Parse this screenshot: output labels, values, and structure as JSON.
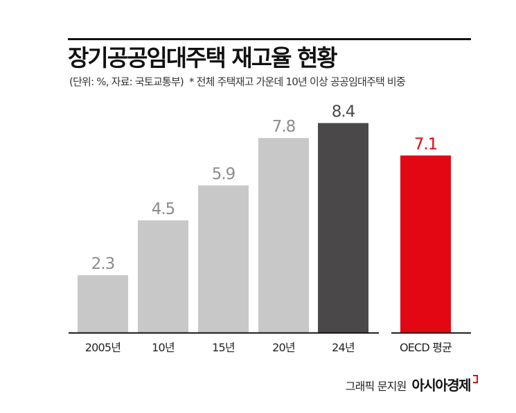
{
  "header": {
    "title": "장기공공임대주택 재고율 현황",
    "subtitle": "(단위: %, 자료: 국토교통부)",
    "note": "* 전체 주택재고 가운데 10년 이상 공공임대주택 비중"
  },
  "credit": {
    "artist": "그래픽 문지원",
    "brand": "아시아경제"
  },
  "colors": {
    "bar_default": "#c8c8c8",
    "bar_latest": "#4a4849",
    "bar_oecd": "#e30613",
    "label_default": "#8c8c8c",
    "label_latest": "#4a4849",
    "label_oecd": "#e30613",
    "axis": "#111111"
  },
  "chart_data": {
    "type": "bar",
    "title": "장기공공임대주택 재고율 현황",
    "xlabel": "",
    "ylabel": "",
    "unit": "%",
    "ylim": [
      0,
      9
    ],
    "grid": false,
    "legend": "none",
    "categories": [
      "2005년",
      "10년",
      "15년",
      "20년",
      "24년",
      "OECD 평균"
    ],
    "values": [
      2.3,
      4.5,
      5.9,
      7.8,
      8.4,
      7.1
    ],
    "value_labels": [
      "2.3",
      "4.5",
      "5.9",
      "7.8",
      "8.4",
      "7.1"
    ],
    "bar_color_keys": [
      "bar_default",
      "bar_default",
      "bar_default",
      "bar_default",
      "bar_latest",
      "bar_oecd"
    ],
    "label_color_keys": [
      "label_default",
      "label_default",
      "label_default",
      "label_default",
      "label_latest",
      "label_oecd"
    ]
  }
}
